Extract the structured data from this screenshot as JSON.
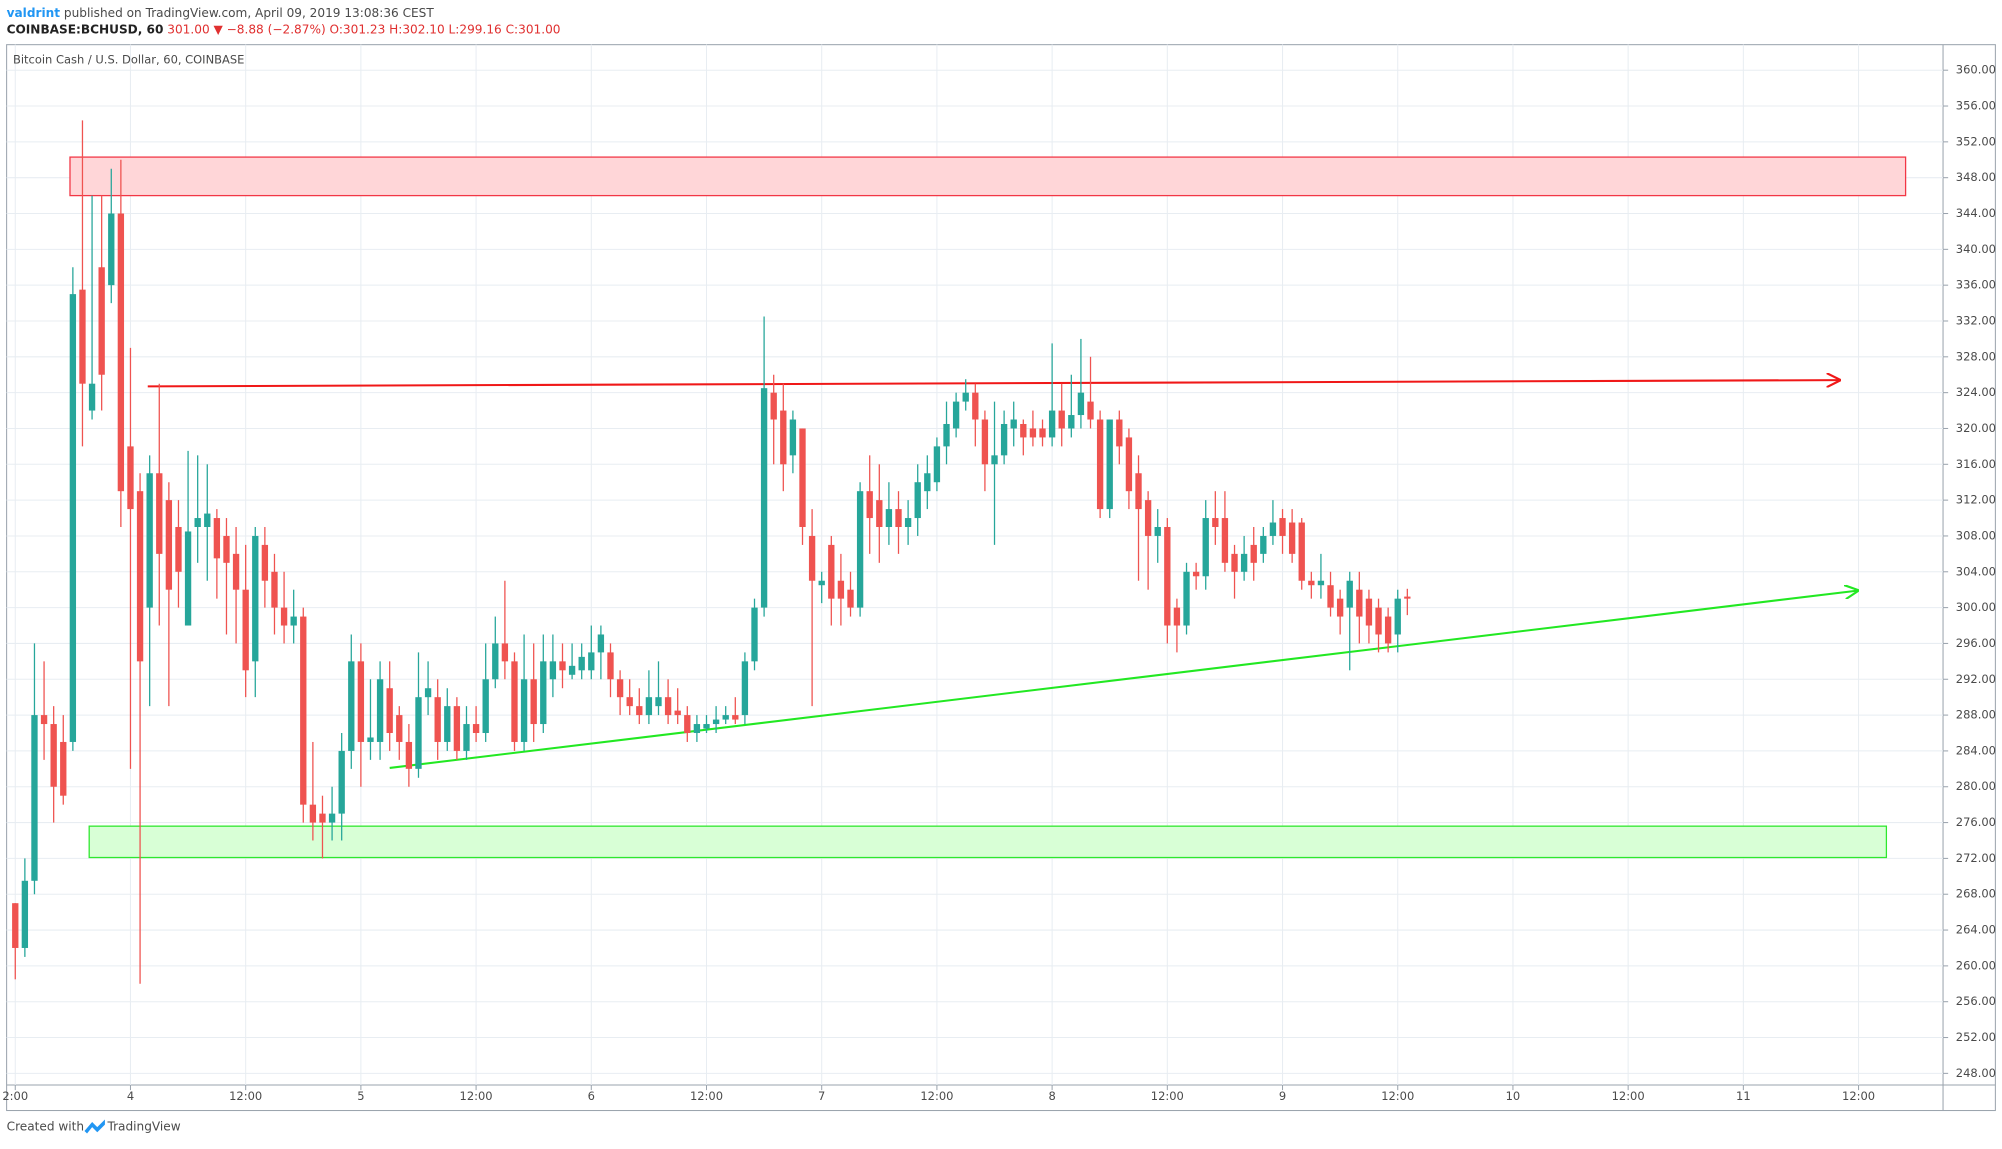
{
  "header": {
    "author": "valdrint",
    "published": "published on TradingView.com, April 09, 2019 13:08:36 CEST",
    "symbol": "COINBASE:BCHUSD, 60",
    "quote": "301.00 ▼ −8.88 (−2.87%) O:301.23 H:302.10 L:299.16 C:301.00"
  },
  "footer": {
    "created": "Created with",
    "brand": "TradingView"
  },
  "chart_data": {
    "type": "candlestick",
    "title": "Bitcoin Cash / U.S. Dollar, 60, COINBASE",
    "up_color": "#26a69a",
    "down_color": "#ef5350",
    "grid": true,
    "x": [
      12,
      13,
      14,
      15,
      16,
      17,
      18,
      19,
      20,
      21,
      22,
      23,
      24,
      25,
      26,
      27,
      28,
      29,
      30,
      31,
      32,
      33,
      34,
      35,
      36,
      37,
      38,
      39,
      40,
      41,
      42,
      43,
      44,
      45,
      46,
      47,
      48,
      49,
      50,
      51,
      52,
      53,
      54,
      55,
      56,
      57,
      58,
      59,
      60,
      61,
      62,
      63,
      64,
      65,
      66,
      67,
      68,
      69,
      70,
      71,
      72,
      73,
      74,
      75,
      76,
      77,
      78,
      79,
      80,
      81,
      82,
      83,
      84,
      85,
      86,
      87,
      88,
      89,
      90,
      91,
      92,
      93,
      94,
      95,
      96,
      97,
      98,
      99,
      100,
      101,
      102,
      103,
      104,
      105,
      106,
      107,
      108,
      109,
      110,
      111,
      112,
      113,
      114,
      115,
      116,
      117,
      118,
      119,
      120,
      121,
      122,
      123,
      124,
      125,
      126,
      127,
      128,
      129,
      130,
      131,
      132,
      133,
      134,
      135,
      136,
      137,
      138,
      139,
      140,
      141,
      142,
      143,
      144,
      145,
      146,
      147,
      148,
      149,
      150,
      151,
      152,
      153,
      154,
      155,
      156,
      157
    ],
    "open": [
      267,
      262,
      269.5,
      288,
      287,
      285,
      285,
      335.5,
      322,
      338,
      336,
      344,
      318,
      313,
      300,
      315,
      312,
      309,
      298,
      309,
      309,
      310,
      308,
      306,
      302,
      294,
      307,
      304,
      300,
      298,
      299,
      278,
      277,
      276,
      277,
      284,
      294,
      285,
      285,
      291,
      288,
      285,
      282,
      290,
      290,
      285,
      289,
      284,
      287,
      286,
      292,
      296,
      294,
      285,
      292,
      287,
      292,
      294,
      292.5,
      293,
      293,
      295,
      295,
      292,
      290,
      289,
      288,
      289,
      290,
      288.5,
      288,
      286,
      286.5,
      287,
      287.5,
      288,
      288,
      294,
      300,
      324,
      322,
      317,
      320,
      308,
      302.5,
      307,
      303,
      302,
      300,
      313,
      312,
      309,
      311,
      309,
      310,
      313,
      314,
      318,
      320,
      323,
      324,
      321,
      316,
      317,
      320,
      320.5,
      320,
      320,
      319,
      322,
      320,
      321.5,
      323,
      321,
      311,
      321,
      319,
      315,
      312,
      308,
      309,
      300,
      298,
      304,
      303.5,
      310,
      310,
      306,
      304,
      307,
      306,
      308,
      310,
      309.5,
      309.5,
      303,
      302.5,
      302.5,
      301,
      300,
      302,
      301,
      300,
      299,
      297,
      301.23
    ],
    "high": [
      267,
      272,
      296,
      294,
      289,
      288,
      338,
      354.4,
      346,
      346,
      349,
      350,
      329,
      315,
      317,
      325,
      314,
      312,
      317.5,
      317,
      316,
      311,
      310,
      309,
      307,
      309,
      309,
      306,
      304,
      302,
      300,
      285,
      279,
      280,
      286,
      297,
      296,
      292,
      294,
      294,
      289,
      287,
      295,
      294,
      292,
      291,
      290,
      289,
      289,
      296,
      299,
      303,
      295,
      297,
      296,
      297,
      297,
      296,
      296,
      296,
      298,
      298,
      296,
      293,
      292,
      291,
      293,
      294,
      292,
      291,
      289,
      288,
      288,
      289,
      289,
      290,
      295,
      301,
      332.5,
      326,
      325,
      322,
      320,
      311,
      304,
      308,
      306,
      304,
      314,
      317,
      316,
      314,
      313,
      312,
      316,
      317,
      319,
      323,
      324,
      325.5,
      325,
      322,
      323,
      322,
      323,
      321,
      322,
      321,
      329.5,
      325,
      326,
      330,
      328,
      322,
      321,
      322,
      320,
      317,
      313,
      311,
      310,
      301,
      305,
      305,
      312,
      313,
      313,
      307,
      308,
      309,
      309,
      312,
      311,
      311,
      310,
      304,
      306,
      304,
      302,
      304,
      304,
      302,
      301,
      300,
      302,
      302.1
    ],
    "low": [
      258.5,
      261,
      268,
      283,
      276,
      278,
      284,
      318,
      321,
      322,
      334,
      309,
      282,
      258,
      289,
      298,
      289,
      300,
      298,
      305,
      303,
      301,
      297,
      296,
      290,
      290,
      300,
      297,
      296,
      296,
      276,
      274,
      272,
      274,
      274,
      282,
      280,
      283,
      283,
      284,
      283,
      280,
      281,
      288,
      283,
      284,
      283,
      283,
      285,
      285,
      291,
      292,
      284,
      284,
      285,
      286,
      290,
      291,
      292,
      292,
      292,
      292,
      290,
      288,
      288,
      287,
      287,
      288,
      287,
      287,
      285,
      285,
      286,
      286,
      287,
      287,
      287,
      293,
      299,
      316,
      313,
      315,
      307,
      289,
      300.5,
      298,
      298,
      299,
      299,
      306,
      305,
      307,
      306,
      307,
      308,
      311,
      313,
      316,
      319,
      322,
      318,
      313,
      307,
      316,
      318,
      317,
      318,
      318,
      318,
      318,
      319,
      320,
      320,
      310,
      310,
      316,
      311,
      303,
      302,
      305,
      296,
      295,
      297,
      302,
      302,
      307,
      304,
      301,
      303,
      303,
      305,
      307,
      306,
      305,
      302,
      301,
      301,
      299,
      297,
      293,
      296,
      296,
      295,
      295,
      295,
      299.16
    ],
    "close": [
      262,
      269.5,
      288,
      287,
      280,
      279,
      335,
      325,
      325,
      326,
      344,
      313,
      311,
      294,
      315,
      306,
      302,
      304,
      308.5,
      310,
      310.5,
      305.5,
      305,
      302,
      293,
      308,
      303,
      300,
      298,
      299,
      278,
      276,
      276,
      277,
      284,
      294,
      285,
      285.5,
      292,
      286,
      285,
      282,
      290,
      291,
      285,
      289,
      284,
      287,
      286,
      292,
      296,
      294,
      285,
      292,
      287,
      294,
      294,
      293,
      293.5,
      294.5,
      295,
      297,
      292,
      290,
      289,
      288,
      290,
      290,
      288,
      288,
      286,
      287,
      287,
      287.5,
      288,
      287.5,
      294,
      300,
      324.5,
      321,
      316,
      321,
      309,
      303,
      303,
      301,
      301,
      300,
      313,
      310,
      309,
      311,
      309,
      310,
      314,
      315,
      318,
      320.5,
      323,
      324,
      321,
      316,
      317,
      320.5,
      321,
      319,
      319,
      319,
      322,
      320,
      321.5,
      324,
      321,
      311,
      321,
      318,
      313,
      311,
      308,
      309,
      298,
      298,
      304,
      303.5,
      310,
      309,
      305,
      304,
      306,
      305,
      308,
      309.5,
      308,
      306,
      303,
      302.5,
      303,
      300,
      299,
      303,
      299,
      298,
      297,
      296,
      301,
      301.0
    ],
    "xlim": [
      11.1,
      212.8
    ],
    "xticks": [
      {
        "value": 12,
        "label": "2:00"
      },
      {
        "value": 24,
        "label": "4"
      },
      {
        "value": 36,
        "label": "12:00"
      },
      {
        "value": 48,
        "label": "5"
      },
      {
        "value": 60,
        "label": "12:00"
      },
      {
        "value": 72,
        "label": "6"
      },
      {
        "value": 84,
        "label": "12:00"
      },
      {
        "value": 96,
        "label": "7"
      },
      {
        "value": 108,
        "label": "12:00"
      },
      {
        "value": 120,
        "label": "8"
      },
      {
        "value": 132,
        "label": "12:00"
      },
      {
        "value": 144,
        "label": "9"
      },
      {
        "value": 156,
        "label": "12:00"
      },
      {
        "value": 168,
        "label": "10"
      },
      {
        "value": 180,
        "label": "12:00"
      },
      {
        "value": 192,
        "label": "11"
      },
      {
        "value": 204,
        "label": "12:00"
      }
    ],
    "ylim": [
      246.7,
      362.85
    ],
    "yticks": [
      {
        "value": 248,
        "label": "248.00"
      },
      {
        "value": 252,
        "label": "252.00"
      },
      {
        "value": 256,
        "label": "256.00"
      },
      {
        "value": 260,
        "label": "260.00"
      },
      {
        "value": 264,
        "label": "264.00"
      },
      {
        "value": 268,
        "label": "268.00"
      },
      {
        "value": 272,
        "label": "272.00"
      },
      {
        "value": 276,
        "label": "276.00"
      },
      {
        "value": 280,
        "label": "280.00"
      },
      {
        "value": 284,
        "label": "284.00"
      },
      {
        "value": 288,
        "label": "288.00"
      },
      {
        "value": 292,
        "label": "292.00"
      },
      {
        "value": 296,
        "label": "296.00"
      },
      {
        "value": 300,
        "label": "300.00"
      },
      {
        "value": 304,
        "label": "304.00"
      },
      {
        "value": 308,
        "label": "308.00"
      },
      {
        "value": 312,
        "label": "312.00"
      },
      {
        "value": 316,
        "label": "316.00"
      },
      {
        "value": 320,
        "label": "320.00"
      },
      {
        "value": 324,
        "label": "324.00"
      },
      {
        "value": 328,
        "label": "328.00"
      },
      {
        "value": 332,
        "label": "332.00"
      },
      {
        "value": 336,
        "label": "336.00"
      },
      {
        "value": 340,
        "label": "340.00"
      },
      {
        "value": 344,
        "label": "344.00"
      },
      {
        "value": 348,
        "label": "348.00"
      },
      {
        "value": 352,
        "label": "352.00"
      },
      {
        "value": 356,
        "label": "356.00"
      },
      {
        "value": 360,
        "label": "360.00"
      }
    ],
    "zones": [
      {
        "x": [
          17.7,
          208.9
        ],
        "y": [
          346.0,
          350.3
        ],
        "color": "#f23645",
        "fill": "#ffd6d8"
      },
      {
        "x": [
          19.7,
          206.9
        ],
        "y": [
          272.1,
          275.6
        ],
        "color": "#2ee82e",
        "fill": "#d8ffd6"
      }
    ],
    "trendlines": [
      {
        "x": [
          25.8,
          202.0
        ],
        "y": [
          324.7,
          325.4
        ],
        "color": "#f01818"
      },
      {
        "x": [
          51.0,
          203.9
        ],
        "y": [
          282.1,
          301.9
        ],
        "color": "#22e822"
      }
    ]
  }
}
